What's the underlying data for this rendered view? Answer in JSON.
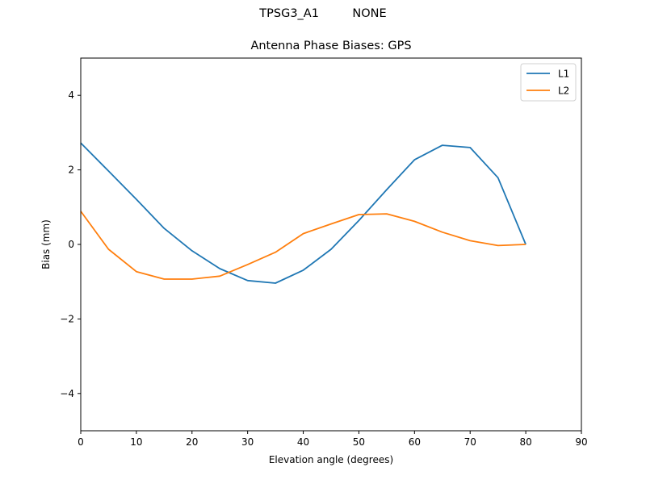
{
  "figure": {
    "suptitle": "TPSG3_A1         NONE",
    "title": "Antenna Phase Biases: GPS"
  },
  "chart_data": {
    "type": "line",
    "title": "Antenna Phase Biases: GPS",
    "suptitle": "TPSG3_A1 NONE",
    "xlabel": "Elevation angle (degrees)",
    "ylabel": "Bias (mm)",
    "xlim": [
      0,
      90
    ],
    "ylim": [
      -5,
      5
    ],
    "xticks": [
      0,
      10,
      20,
      30,
      40,
      50,
      60,
      70,
      80,
      90
    ],
    "yticks": [
      -4,
      -2,
      0,
      2,
      4
    ],
    "ytick_labels": [
      "−4",
      "−2",
      "0",
      "2",
      "4"
    ],
    "grid": false,
    "legend_position": "upper right",
    "x": [
      0,
      5,
      10,
      15,
      20,
      25,
      30,
      35,
      40,
      45,
      50,
      55,
      60,
      65,
      70,
      75,
      80
    ],
    "series": [
      {
        "name": "L1",
        "color": "#1f77b4",
        "values": [
          2.72,
          1.97,
          1.21,
          0.43,
          -0.17,
          -0.65,
          -0.97,
          -1.04,
          -0.69,
          -0.13,
          0.64,
          1.47,
          2.27,
          2.66,
          2.6,
          1.79,
          0.0
        ]
      },
      {
        "name": "L2",
        "color": "#ff7f0e",
        "values": [
          0.89,
          -0.13,
          -0.73,
          -0.93,
          -0.93,
          -0.85,
          -0.54,
          -0.21,
          0.29,
          0.55,
          0.8,
          0.82,
          0.62,
          0.33,
          0.1,
          -0.03,
          0.0
        ]
      }
    ]
  }
}
